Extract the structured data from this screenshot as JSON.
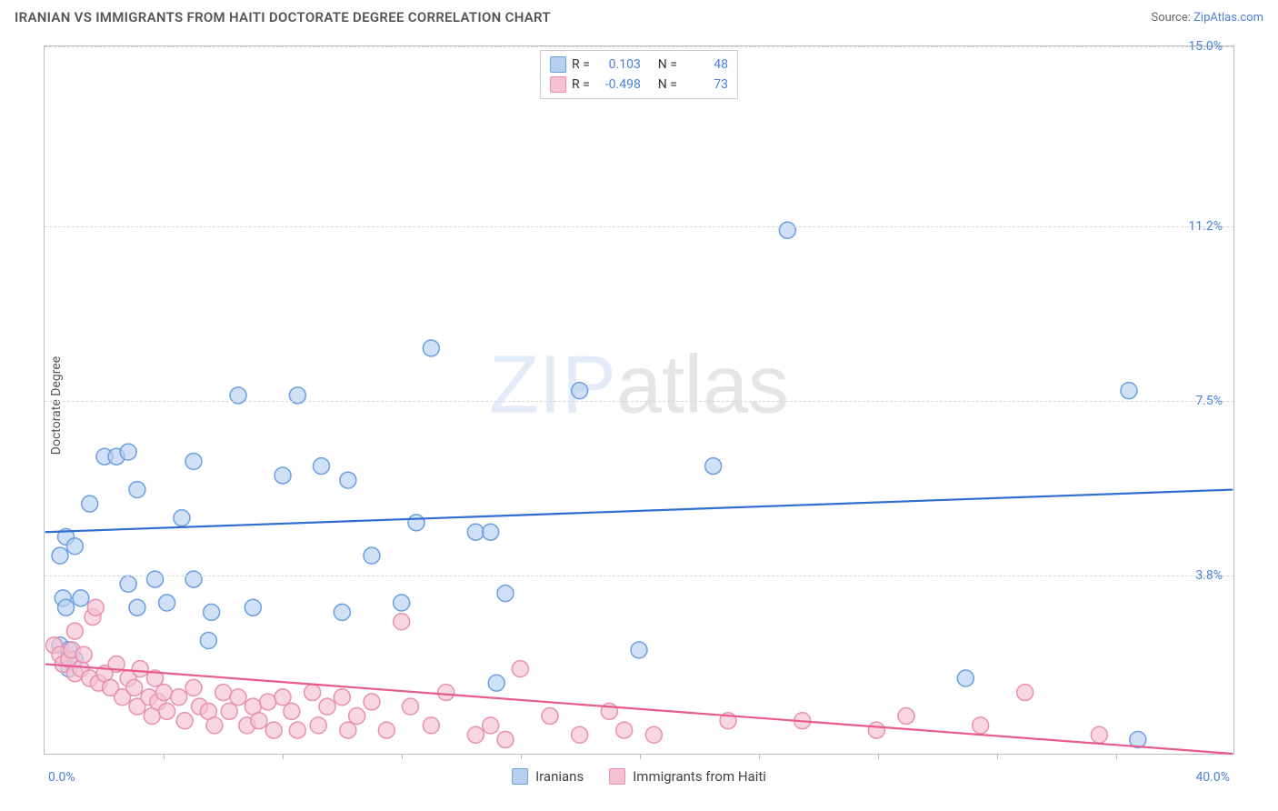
{
  "header": {
    "title": "IRANIAN VS IMMIGRANTS FROM HAITI DOCTORATE DEGREE CORRELATION CHART",
    "source_prefix": "Source: ",
    "source_name": "ZipAtlas.com"
  },
  "watermark": {
    "bold": "ZIP",
    "thin": "atlas"
  },
  "chart": {
    "type": "scatter",
    "ylabel": "Doctorate Degree",
    "xlim": [
      0,
      40
    ],
    "ylim": [
      0,
      15
    ],
    "x_start_label": "0.0%",
    "x_end_label": "40.0%",
    "y_ticks": [
      {
        "v": 3.8,
        "label": "3.8%"
      },
      {
        "v": 7.5,
        "label": "7.5%"
      },
      {
        "v": 11.2,
        "label": "11.2%"
      },
      {
        "v": 15.0,
        "label": "15.0%"
      }
    ],
    "x_tick_positions": [
      4,
      8,
      12,
      16,
      20,
      24,
      28,
      32,
      36
    ],
    "background_color": "#ffffff",
    "grid_color": "#d8d8d8",
    "border_color": "#bbbbbb",
    "marker_radius": 9,
    "marker_stroke_width": 1.5,
    "trend_line_width": 2.2,
    "series": [
      {
        "name": "Iranians",
        "fill": "#b7cff1",
        "stroke": "#6b9fe0",
        "line_color": "#2f6ed1",
        "R": "0.103",
        "N": "48",
        "trend": {
          "x1": 0,
          "y1": 4.7,
          "x2": 40,
          "y2": 5.6
        },
        "points": [
          [
            0.5,
            2.3
          ],
          [
            0.5,
            4.2
          ],
          [
            0.6,
            3.3
          ],
          [
            0.7,
            4.6
          ],
          [
            0.7,
            3.1
          ],
          [
            0.8,
            2.2
          ],
          [
            0.8,
            1.8
          ],
          [
            1.0,
            4.4
          ],
          [
            1.0,
            2.0
          ],
          [
            1.2,
            3.3
          ],
          [
            1.5,
            5.3
          ],
          [
            2.0,
            6.3
          ],
          [
            2.4,
            6.3
          ],
          [
            2.8,
            6.4
          ],
          [
            2.8,
            3.6
          ],
          [
            3.1,
            5.6
          ],
          [
            3.1,
            3.1
          ],
          [
            3.7,
            3.7
          ],
          [
            4.1,
            3.2
          ],
          [
            4.6,
            5.0
          ],
          [
            5.0,
            3.7
          ],
          [
            5.0,
            6.2
          ],
          [
            5.5,
            2.4
          ],
          [
            5.6,
            3.0
          ],
          [
            6.5,
            7.6
          ],
          [
            7.0,
            3.1
          ],
          [
            8.0,
            5.9
          ],
          [
            8.5,
            7.6
          ],
          [
            9.3,
            6.1
          ],
          [
            10.0,
            3.0
          ],
          [
            10.2,
            5.8
          ],
          [
            11.0,
            4.2
          ],
          [
            12.0,
            3.2
          ],
          [
            12.5,
            4.9
          ],
          [
            13.0,
            8.6
          ],
          [
            14.5,
            4.7
          ],
          [
            15.0,
            4.7
          ],
          [
            15.5,
            3.4
          ],
          [
            15.2,
            1.5
          ],
          [
            18.0,
            7.7
          ],
          [
            20.0,
            2.2
          ],
          [
            22.5,
            6.1
          ],
          [
            25.0,
            11.1
          ],
          [
            31.0,
            1.6
          ],
          [
            36.5,
            7.7
          ],
          [
            36.8,
            0.3
          ]
        ]
      },
      {
        "name": "Immigrants from Haiti",
        "fill": "#f6c2d1",
        "stroke": "#e98fb0",
        "line_color": "#e85a8f",
        "R": "-0.498",
        "N": "73",
        "trend": {
          "x1": 0,
          "y1": 1.9,
          "x2": 40,
          "y2": 0.0
        },
        "points": [
          [
            0.3,
            2.3
          ],
          [
            0.5,
            2.1
          ],
          [
            0.6,
            1.9
          ],
          [
            0.8,
            2.0
          ],
          [
            0.9,
            2.2
          ],
          [
            1.0,
            1.7
          ],
          [
            1.0,
            2.6
          ],
          [
            1.2,
            1.8
          ],
          [
            1.3,
            2.1
          ],
          [
            1.5,
            1.6
          ],
          [
            1.6,
            2.9
          ],
          [
            1.7,
            3.1
          ],
          [
            1.8,
            1.5
          ],
          [
            2.0,
            1.7
          ],
          [
            2.2,
            1.4
          ],
          [
            2.4,
            1.9
          ],
          [
            2.6,
            1.2
          ],
          [
            2.8,
            1.6
          ],
          [
            3.0,
            1.4
          ],
          [
            3.1,
            1.0
          ],
          [
            3.2,
            1.8
          ],
          [
            3.5,
            1.2
          ],
          [
            3.6,
            0.8
          ],
          [
            3.7,
            1.6
          ],
          [
            3.8,
            1.1
          ],
          [
            4.0,
            1.3
          ],
          [
            4.1,
            0.9
          ],
          [
            4.5,
            1.2
          ],
          [
            4.7,
            0.7
          ],
          [
            5.0,
            1.4
          ],
          [
            5.2,
            1.0
          ],
          [
            5.5,
            0.9
          ],
          [
            5.7,
            0.6
          ],
          [
            6.0,
            1.3
          ],
          [
            6.2,
            0.9
          ],
          [
            6.5,
            1.2
          ],
          [
            6.8,
            0.6
          ],
          [
            7.0,
            1.0
          ],
          [
            7.2,
            0.7
          ],
          [
            7.5,
            1.1
          ],
          [
            7.7,
            0.5
          ],
          [
            8.0,
            1.2
          ],
          [
            8.3,
            0.9
          ],
          [
            8.5,
            0.5
          ],
          [
            9.0,
            1.3
          ],
          [
            9.2,
            0.6
          ],
          [
            9.5,
            1.0
          ],
          [
            10.0,
            1.2
          ],
          [
            10.2,
            0.5
          ],
          [
            10.5,
            0.8
          ],
          [
            11.0,
            1.1
          ],
          [
            11.5,
            0.5
          ],
          [
            12.0,
            2.8
          ],
          [
            12.3,
            1.0
          ],
          [
            13.0,
            0.6
          ],
          [
            13.5,
            1.3
          ],
          [
            14.5,
            0.4
          ],
          [
            15.0,
            0.6
          ],
          [
            15.5,
            0.3
          ],
          [
            16.0,
            1.8
          ],
          [
            17.0,
            0.8
          ],
          [
            18.0,
            0.4
          ],
          [
            19.0,
            0.9
          ],
          [
            19.5,
            0.5
          ],
          [
            20.5,
            0.4
          ],
          [
            23.0,
            0.7
          ],
          [
            25.5,
            0.7
          ],
          [
            28.0,
            0.5
          ],
          [
            29.0,
            0.8
          ],
          [
            31.5,
            0.6
          ],
          [
            33.0,
            1.3
          ],
          [
            35.5,
            0.4
          ]
        ]
      }
    ]
  },
  "legend_top": {
    "r_label": "R =",
    "n_label": "N ="
  },
  "legend_bottom": {
    "series1": "Iranians",
    "series2": "Immigrants from Haiti"
  }
}
